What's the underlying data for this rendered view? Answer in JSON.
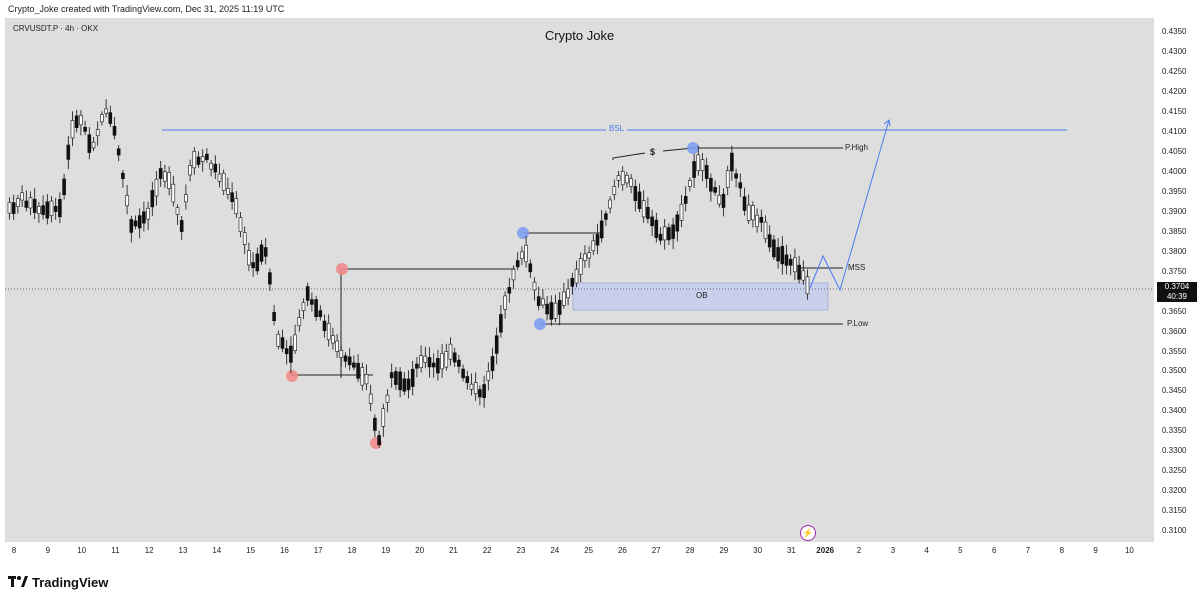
{
  "header": {
    "credit": "Crypto_Joke created with TradingView.com, Dec 31, 2025 11:19 UTC"
  },
  "chart": {
    "symbol": "CRVUSDT.P · 4h · OKX",
    "title": "Crypto Joke",
    "last_price": "0.3704",
    "countdown": "40:39"
  },
  "labels": {
    "bsl": "BSL",
    "p_high": "P.High",
    "dollar": "$",
    "mss": "MSS",
    "ob": "OB",
    "p_low": "P.Low"
  },
  "y_axis": [
    "0.4350",
    "0.4300",
    "0.4250",
    "0.4200",
    "0.4150",
    "0.4100",
    "0.4050",
    "0.4000",
    "0.3950",
    "0.3900",
    "0.3850",
    "0.3800",
    "0.3750",
    "0.3700",
    "0.3650",
    "0.3600",
    "0.3550",
    "0.3500",
    "0.3450",
    "0.3400",
    "0.3350",
    "0.3300",
    "0.3250",
    "0.3200",
    "0.3150",
    "0.3100"
  ],
  "x_axis": [
    "8",
    "9",
    "10",
    "11",
    "12",
    "13",
    "14",
    "15",
    "16",
    "17",
    "18",
    "19",
    "20",
    "21",
    "22",
    "23",
    "24",
    "25",
    "26",
    "27",
    "28",
    "29",
    "30",
    "31",
    "2026",
    "2",
    "3",
    "4",
    "5",
    "6",
    "7",
    "8",
    "9",
    "10"
  ],
  "footer": {
    "brand": "TradingView"
  },
  "colors": {
    "blue": "#4a7cf0",
    "red_dot": "#ef8c8c",
    "blue_dot": "#7f9ef0",
    "ob_box": "#c8d0ec"
  },
  "chart_data": {
    "type": "candlestick",
    "title": "Crypto Joke",
    "ylim": [
      0.3095,
      0.4365
    ],
    "levels": {
      "BSL": 0.4095,
      "P.High": 0.405,
      "MSS": 0.375,
      "P.Low": 0.3612,
      "OB_top": 0.372,
      "OB_bottom": 0.3652
    }
  }
}
